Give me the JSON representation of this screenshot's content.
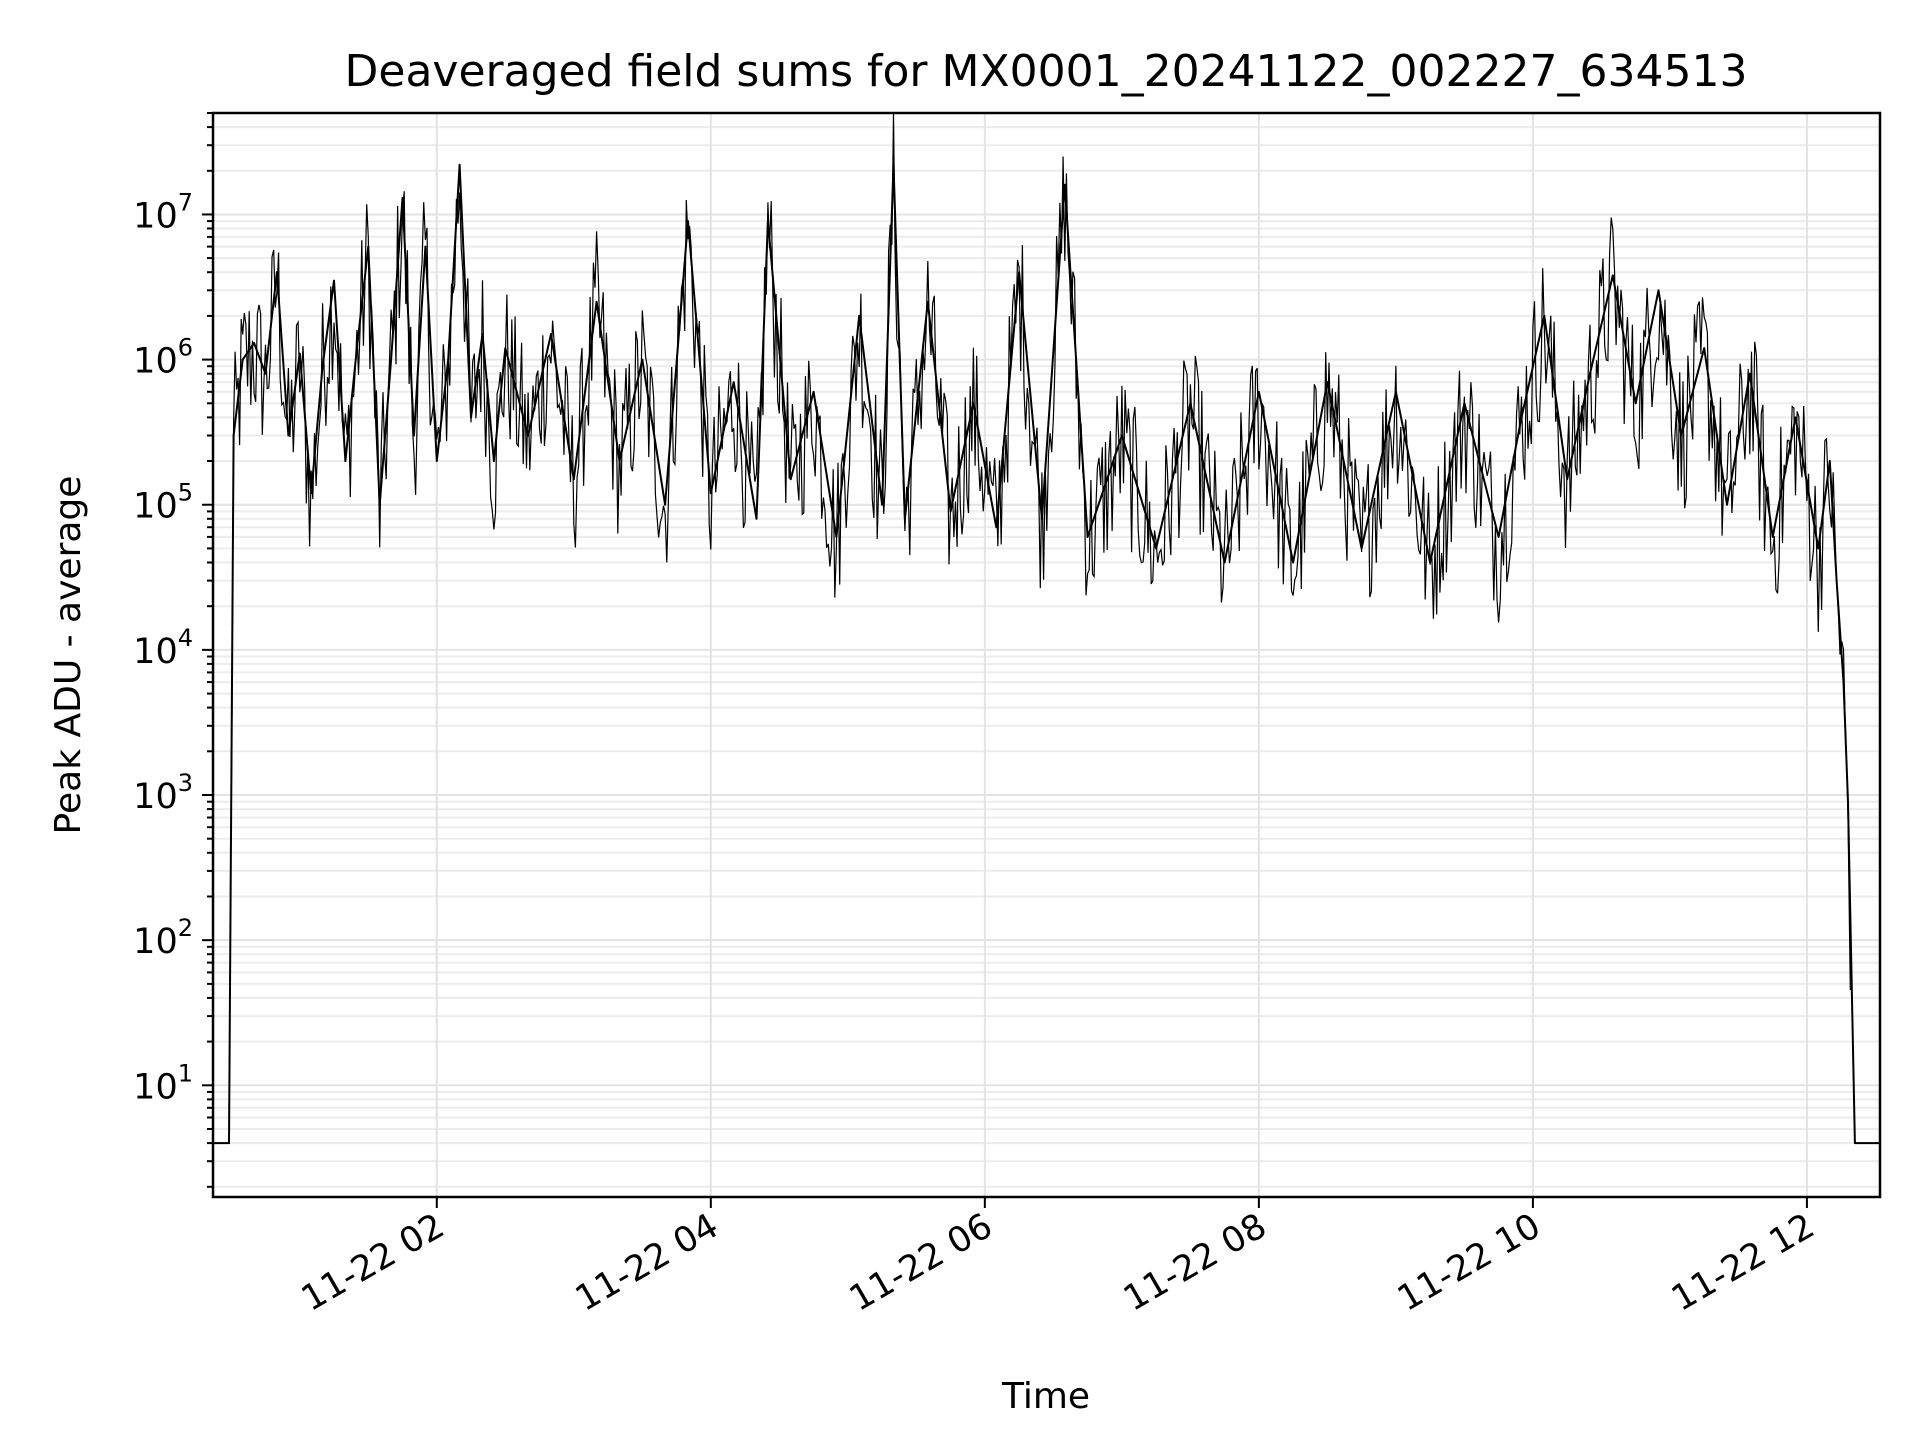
{
  "chart_data": {
    "type": "line",
    "title": "Deaveraged field sums for MX0001_20241122_002227_634513",
    "xlabel": "Time",
    "ylabel": "Peak ADU - average",
    "yscale": "log",
    "ylim": [
      1.7,
      50000000
    ],
    "xlim": [
      "2024-11-22 00:22",
      "2024-11-22 12:32"
    ],
    "grid": true,
    "line_color": "#000000",
    "x_ticks": [
      {
        "value": "2024-11-22 02:00",
        "label": "11-22 02"
      },
      {
        "value": "2024-11-22 04:00",
        "label": "11-22 04"
      },
      {
        "value": "2024-11-22 06:00",
        "label": "11-22 06"
      },
      {
        "value": "2024-11-22 08:00",
        "label": "11-22 08"
      },
      {
        "value": "2024-11-22 10:00",
        "label": "11-22 10"
      },
      {
        "value": "2024-11-22 12:00",
        "label": "11-22 12"
      }
    ],
    "y_ticks": [
      {
        "value": 10,
        "base": "10",
        "exp": "1"
      },
      {
        "value": 100,
        "base": "10",
        "exp": "2"
      },
      {
        "value": 1000,
        "base": "10",
        "exp": "3"
      },
      {
        "value": 10000,
        "base": "10",
        "exp": "4"
      },
      {
        "value": 100000,
        "base": "10",
        "exp": "5"
      },
      {
        "value": 1000000,
        "base": "10",
        "exp": "6"
      },
      {
        "value": 10000000,
        "base": "10",
        "exp": "7"
      }
    ],
    "series": [
      {
        "color": "#000000",
        "points": [
          [
            "2024-11-22 00:22",
            4
          ],
          [
            "2024-11-22 00:29",
            4
          ],
          [
            "2024-11-22 00:31",
            300000
          ],
          [
            "2024-11-22 00:35",
            1000000
          ],
          [
            "2024-11-22 00:40",
            1300000
          ],
          [
            "2024-11-22 00:45",
            800000
          ],
          [
            "2024-11-22 00:50",
            4000000
          ],
          [
            "2024-11-22 00:55",
            300000
          ],
          [
            "2024-11-22 01:00",
            1100000
          ],
          [
            "2024-11-22 01:05",
            120000
          ],
          [
            "2024-11-22 01:10",
            900000
          ],
          [
            "2024-11-22 01:15",
            3500000
          ],
          [
            "2024-11-22 01:20",
            200000
          ],
          [
            "2024-11-22 01:25",
            1200000
          ],
          [
            "2024-11-22 01:30",
            6000000
          ],
          [
            "2024-11-22 01:35",
            100000
          ],
          [
            "2024-11-22 01:40",
            1000000
          ],
          [
            "2024-11-22 01:45",
            13000000
          ],
          [
            "2024-11-22 01:50",
            300000
          ],
          [
            "2024-11-22 01:55",
            6000000
          ],
          [
            "2024-11-22 02:00",
            200000
          ],
          [
            "2024-11-22 02:05",
            1000000
          ],
          [
            "2024-11-22 02:10",
            22000000
          ],
          [
            "2024-11-22 02:15",
            400000
          ],
          [
            "2024-11-22 02:20",
            1500000
          ],
          [
            "2024-11-22 02:25",
            200000
          ],
          [
            "2024-11-22 02:30",
            1200000
          ],
          [
            "2024-11-22 02:40",
            300000
          ],
          [
            "2024-11-22 02:50",
            1500000
          ],
          [
            "2024-11-22 03:00",
            150000
          ],
          [
            "2024-11-22 03:10",
            2500000
          ],
          [
            "2024-11-22 03:20",
            200000
          ],
          [
            "2024-11-22 03:30",
            1000000
          ],
          [
            "2024-11-22 03:40",
            100000
          ],
          [
            "2024-11-22 03:50",
            9000000
          ],
          [
            "2024-11-22 04:00",
            120000
          ],
          [
            "2024-11-22 04:10",
            700000
          ],
          [
            "2024-11-22 04:20",
            80000
          ],
          [
            "2024-11-22 04:25",
            9000000
          ],
          [
            "2024-11-22 04:35",
            150000
          ],
          [
            "2024-11-22 04:45",
            600000
          ],
          [
            "2024-11-22 04:55",
            60000
          ],
          [
            "2024-11-22 05:05",
            2000000
          ],
          [
            "2024-11-22 05:15",
            100000
          ],
          [
            "2024-11-22 05:20",
            22000000
          ],
          [
            "2024-11-22 05:25",
            80000
          ],
          [
            "2024-11-22 05:35",
            2500000
          ],
          [
            "2024-11-22 05:45",
            90000
          ],
          [
            "2024-11-22 05:55",
            500000
          ],
          [
            "2024-11-22 06:05",
            70000
          ],
          [
            "2024-11-22 06:15",
            4000000
          ],
          [
            "2024-11-22 06:25",
            80000
          ],
          [
            "2024-11-22 06:35",
            16000000
          ],
          [
            "2024-11-22 06:45",
            60000
          ],
          [
            "2024-11-22 07:00",
            300000
          ],
          [
            "2024-11-22 07:15",
            50000
          ],
          [
            "2024-11-22 07:30",
            500000
          ],
          [
            "2024-11-22 07:45",
            40000
          ],
          [
            "2024-11-22 08:00",
            600000
          ],
          [
            "2024-11-22 08:15",
            40000
          ],
          [
            "2024-11-22 08:30",
            700000
          ],
          [
            "2024-11-22 08:45",
            50000
          ],
          [
            "2024-11-22 09:00",
            600000
          ],
          [
            "2024-11-22 09:15",
            40000
          ],
          [
            "2024-11-22 09:30",
            500000
          ],
          [
            "2024-11-22 09:45",
            60000
          ],
          [
            "2024-11-22 09:55",
            400000
          ],
          [
            "2024-11-22 10:05",
            2000000
          ],
          [
            "2024-11-22 10:15",
            150000
          ],
          [
            "2024-11-22 10:25",
            800000
          ],
          [
            "2024-11-22 10:35",
            3800000
          ],
          [
            "2024-11-22 10:45",
            500000
          ],
          [
            "2024-11-22 10:55",
            3000000
          ],
          [
            "2024-11-22 11:05",
            300000
          ],
          [
            "2024-11-22 11:15",
            1200000
          ],
          [
            "2024-11-22 11:25",
            100000
          ],
          [
            "2024-11-22 11:35",
            800000
          ],
          [
            "2024-11-22 11:45",
            60000
          ],
          [
            "2024-11-22 11:55",
            400000
          ],
          [
            "2024-11-22 12:05",
            50000
          ],
          [
            "2024-11-22 12:10",
            200000
          ],
          [
            "2024-11-22 12:13",
            30000
          ],
          [
            "2024-11-22 12:16",
            6000
          ],
          [
            "2024-11-22 12:18",
            900
          ],
          [
            "2024-11-22 12:19",
            150
          ],
          [
            "2024-11-22 12:21",
            4
          ],
          [
            "2024-11-22 12:32",
            4
          ]
        ]
      }
    ]
  }
}
